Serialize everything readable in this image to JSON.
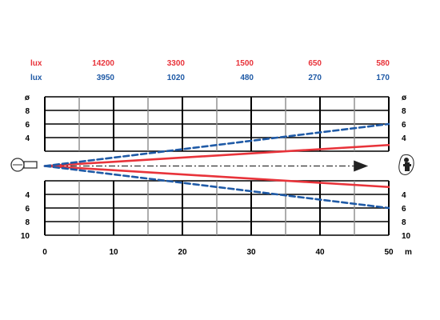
{
  "chart_data": {
    "type": "line",
    "xlabel": "",
    "ylabel": "",
    "x_unit": "m",
    "xlim": [
      0,
      50
    ],
    "x_ticks": [
      0,
      10,
      20,
      30,
      40,
      50
    ],
    "y_tick_labels": {
      "upper": [
        "ø",
        "8",
        "6",
        "4"
      ],
      "lower": [
        "4",
        "6",
        "8",
        "10"
      ]
    },
    "grid": true,
    "lux_rows": [
      {
        "label": "lux",
        "color": "#e8333a",
        "values": [
          "14200",
          "3300",
          "1500",
          "650",
          "580"
        ]
      },
      {
        "label": "lux",
        "color": "#1f5aa6",
        "values": [
          "3950",
          "1020",
          "480",
          "270",
          "170"
        ]
      }
    ],
    "series": [
      {
        "color": "#e8333a",
        "style": "solid",
        "upper": [
          [
            0,
            0
          ],
          [
            50,
            3
          ]
        ],
        "lower": [
          [
            0,
            0
          ],
          [
            50,
            -3
          ]
        ]
      },
      {
        "color": "#1f5aa6",
        "style": "dashed",
        "upper": [
          [
            0,
            0
          ],
          [
            50,
            6
          ]
        ],
        "lower": [
          [
            0,
            0
          ],
          [
            50,
            -6
          ]
        ]
      }
    ],
    "center_line": {
      "style": "dash-dot",
      "from": 0,
      "to": 47,
      "arrow": true
    }
  },
  "colors": {
    "red": "#e8333a",
    "blue": "#1f5aa6",
    "grid": "#000000",
    "center": "#333333"
  },
  "icons": {
    "left": "light-source-icon",
    "right": "person-icon"
  }
}
